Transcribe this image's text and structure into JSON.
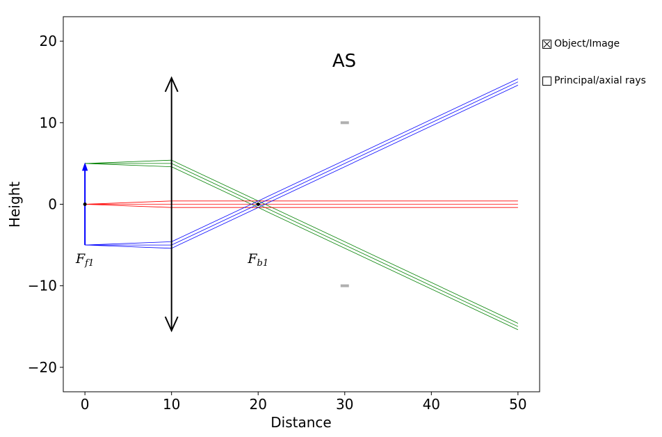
{
  "chart_data": {
    "type": "line",
    "title": "",
    "xlabel": "Distance",
    "ylabel": "Height",
    "xlim": [
      -2.5,
      52.5
    ],
    "ylim": [
      -23,
      23
    ],
    "xticks": [
      0,
      10,
      20,
      30,
      40,
      50
    ],
    "yticks": [
      -20,
      -10,
      0,
      10,
      20
    ],
    "xtick_labels": [
      "0",
      "10",
      "20",
      "30",
      "40",
      "50"
    ],
    "ytick_labels": [
      "−20",
      "−10",
      "0",
      "10",
      "20"
    ],
    "grid": false,
    "annotation_as": "AS",
    "lens": {
      "x": 10,
      "y_top": 15.5,
      "y_bottom": -15.5,
      "color": "#000000"
    },
    "object_arrow": {
      "x": 0,
      "y_start": -5,
      "y_end": 5,
      "color": "#0000ff"
    },
    "aperture_stop": {
      "x": 30,
      "y_top": 10,
      "y_bottom": -10,
      "color": "#b0b0b0"
    },
    "focal_points": [
      {
        "label": "F_f1",
        "x": 0,
        "y": 0,
        "label_x": 0,
        "label_y": -7.2
      },
      {
        "label": "F_b1",
        "x": 20,
        "y": 0,
        "label_x": 20,
        "label_y": -7.2
      }
    ],
    "series": [
      {
        "color": "#008000",
        "points": [
          [
            0,
            5
          ],
          [
            10,
            5.4
          ],
          [
            50,
            -14.6
          ]
        ]
      },
      {
        "color": "#008000",
        "points": [
          [
            0,
            5
          ],
          [
            10,
            5.0
          ],
          [
            50,
            -15.0
          ]
        ]
      },
      {
        "color": "#008000",
        "points": [
          [
            0,
            5
          ],
          [
            10,
            4.6
          ],
          [
            50,
            -15.4
          ]
        ]
      },
      {
        "color": "#ff0000",
        "points": [
          [
            0,
            0
          ],
          [
            10,
            0.4
          ],
          [
            50,
            0.4
          ]
        ]
      },
      {
        "color": "#ff0000",
        "points": [
          [
            0,
            0
          ],
          [
            10,
            0
          ],
          [
            50,
            0
          ]
        ]
      },
      {
        "color": "#ff0000",
        "points": [
          [
            0,
            0
          ],
          [
            10,
            -0.4
          ],
          [
            50,
            -0.4
          ]
        ]
      },
      {
        "color": "#0000ff",
        "points": [
          [
            0,
            -5
          ],
          [
            10,
            -4.6
          ],
          [
            50,
            15.4
          ]
        ]
      },
      {
        "color": "#0000ff",
        "points": [
          [
            0,
            -5
          ],
          [
            10,
            -5.0
          ],
          [
            50,
            15.0
          ]
        ]
      },
      {
        "color": "#0000ff",
        "points": [
          [
            0,
            -5
          ],
          [
            10,
            -5.4
          ],
          [
            50,
            14.6
          ]
        ]
      }
    ]
  },
  "controls": {
    "object_image": {
      "label": "Object/Image",
      "checked": true
    },
    "principal_axial": {
      "label": "Principal/axial rays",
      "checked": false
    }
  }
}
